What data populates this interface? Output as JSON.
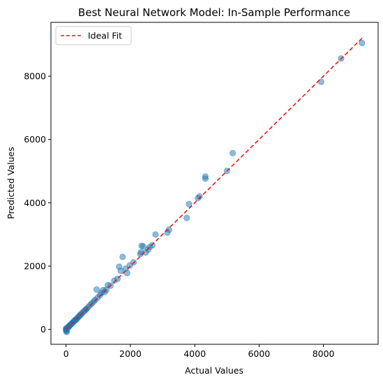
{
  "chart_data": {
    "type": "scatter",
    "title": "Best Neural Network Model: In-Sample Performance",
    "xlabel": "Actual Values",
    "ylabel": "Predicted Values",
    "xlim": [
      -470,
      9700
    ],
    "ylim": [
      -470,
      9700
    ],
    "xticks": [
      0,
      2000,
      4000,
      6000,
      8000
    ],
    "yticks": [
      0,
      2000,
      4000,
      6000,
      8000
    ],
    "grid": false,
    "legend": {
      "placement": "top-left",
      "entries": [
        "Ideal Fit"
      ]
    },
    "series": [
      {
        "kind": "scatter",
        "color": "#1f77b4",
        "alpha": 0.5,
        "points": [
          [
            9200,
            9050
          ],
          [
            8550,
            8560
          ],
          [
            7930,
            7820
          ],
          [
            5180,
            5570
          ],
          [
            5000,
            5010
          ],
          [
            4330,
            4830
          ],
          [
            4330,
            4760
          ],
          [
            4150,
            4200
          ],
          [
            4100,
            4150
          ],
          [
            3820,
            3960
          ],
          [
            3750,
            3520
          ],
          [
            3200,
            3150
          ],
          [
            3150,
            3060
          ],
          [
            2780,
            3000
          ],
          [
            2680,
            2660
          ],
          [
            2600,
            2600
          ],
          [
            2550,
            2520
          ],
          [
            2480,
            2430
          ],
          [
            2400,
            2620
          ],
          [
            2350,
            2640
          ],
          [
            2330,
            2440
          ],
          [
            2310,
            2380
          ],
          [
            2100,
            2120
          ],
          [
            1980,
            2020
          ],
          [
            1900,
            1780
          ],
          [
            1850,
            1920
          ],
          [
            1760,
            2290
          ],
          [
            1700,
            1850
          ],
          [
            1650,
            1980
          ],
          [
            1600,
            1600
          ],
          [
            1500,
            1540
          ],
          [
            1380,
            1380
          ],
          [
            1300,
            1400
          ],
          [
            1250,
            1250
          ],
          [
            1200,
            1180
          ],
          [
            1150,
            1240
          ],
          [
            1100,
            1150
          ],
          [
            1050,
            1080
          ],
          [
            980,
            1000
          ],
          [
            950,
            1260
          ],
          [
            900,
            930
          ],
          [
            860,
            880
          ],
          [
            800,
            820
          ],
          [
            760,
            780
          ],
          [
            700,
            720
          ],
          [
            650,
            660
          ],
          [
            620,
            640
          ],
          [
            600,
            610
          ],
          [
            560,
            570
          ],
          [
            520,
            540
          ],
          [
            480,
            490
          ],
          [
            450,
            470
          ],
          [
            430,
            440
          ],
          [
            400,
            410
          ],
          [
            380,
            390
          ],
          [
            350,
            360
          ],
          [
            330,
            320
          ],
          [
            300,
            310
          ],
          [
            280,
            290
          ],
          [
            260,
            270
          ],
          [
            240,
            250
          ],
          [
            220,
            230
          ],
          [
            200,
            210
          ],
          [
            180,
            190
          ],
          [
            160,
            170
          ],
          [
            140,
            150
          ],
          [
            120,
            130
          ],
          [
            100,
            110
          ],
          [
            90,
            95
          ],
          [
            80,
            85
          ],
          [
            70,
            75
          ],
          [
            60,
            65
          ],
          [
            50,
            55
          ],
          [
            40,
            45
          ],
          [
            30,
            35
          ],
          [
            25,
            20
          ],
          [
            20,
            15
          ],
          [
            15,
            10
          ],
          [
            10,
            5
          ],
          [
            5,
            0
          ],
          [
            0,
            -20
          ],
          [
            10,
            -60
          ],
          [
            20,
            -80
          ],
          [
            0,
            30
          ]
        ]
      },
      {
        "kind": "line",
        "name": "Ideal Fit",
        "color": "#e41a1c",
        "dash": "dashed",
        "x": [
          0,
          9200
        ],
        "y": [
          0,
          9200
        ]
      }
    ]
  }
}
